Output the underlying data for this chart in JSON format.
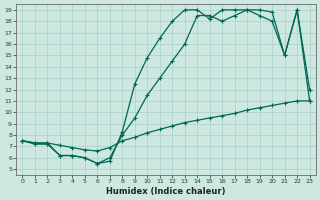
{
  "xlabel": "Humidex (Indice chaleur)",
  "bg_color": "#cce8e0",
  "grid_color": "#aacfc8",
  "line_color": "#006655",
  "xlim": [
    -0.5,
    23.5
  ],
  "ylim": [
    4.5,
    19.5
  ],
  "xticks": [
    0,
    1,
    2,
    3,
    4,
    5,
    6,
    7,
    8,
    9,
    10,
    11,
    12,
    13,
    14,
    15,
    16,
    17,
    18,
    19,
    20,
    21,
    22,
    23
  ],
  "yticks": [
    5,
    6,
    7,
    8,
    9,
    10,
    11,
    12,
    13,
    14,
    15,
    16,
    17,
    18,
    19
  ],
  "line1_x": [
    0,
    1,
    2,
    3,
    4,
    5,
    6,
    7,
    8,
    9,
    10,
    11,
    12,
    13,
    14,
    15,
    16,
    17,
    18,
    19,
    20,
    21,
    22,
    23
  ],
  "line1_y": [
    7.5,
    7.3,
    7.3,
    7.1,
    6.9,
    6.7,
    6.6,
    6.9,
    7.5,
    7.8,
    8.2,
    8.5,
    8.8,
    9.1,
    9.3,
    9.5,
    9.7,
    9.9,
    10.2,
    10.4,
    10.6,
    10.8,
    11.0,
    11.0
  ],
  "line2_x": [
    0,
    1,
    2,
    3,
    4,
    5,
    6,
    7,
    8,
    9,
    10,
    11,
    12,
    13,
    14,
    15,
    16,
    17,
    18,
    19,
    20,
    21,
    22,
    23
  ],
  "line2_y": [
    7.5,
    7.2,
    7.2,
    6.2,
    6.2,
    6.0,
    5.5,
    5.7,
    8.3,
    12.5,
    14.8,
    16.5,
    18.0,
    19.0,
    19.0,
    18.2,
    19.0,
    19.0,
    19.0,
    19.0,
    18.8,
    15.0,
    19.0,
    12.0
  ],
  "line3_x": [
    0,
    1,
    2,
    3,
    4,
    5,
    6,
    7,
    8,
    9,
    10,
    11,
    12,
    13,
    14,
    15,
    16,
    17,
    18,
    19,
    20,
    21,
    22,
    23
  ],
  "line3_y": [
    7.5,
    7.3,
    7.3,
    6.2,
    6.2,
    6.0,
    5.5,
    6.0,
    8.0,
    9.5,
    11.5,
    13.0,
    14.5,
    16.0,
    18.5,
    18.5,
    18.0,
    18.5,
    19.0,
    18.5,
    18.0,
    15.0,
    19.0,
    11.0
  ],
  "markersize": 2.5,
  "linewidth": 0.9
}
